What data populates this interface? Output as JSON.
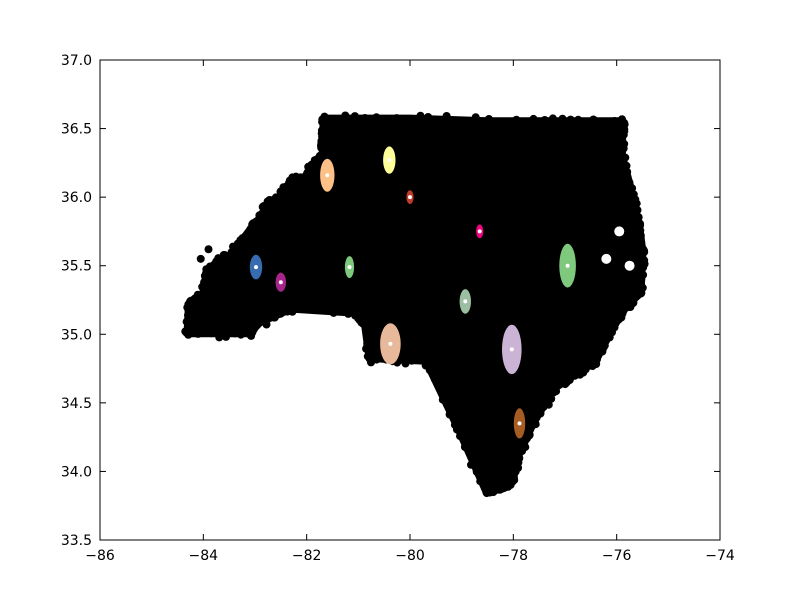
{
  "chart_data": {
    "type": "scatter",
    "title": "",
    "xlabel": "",
    "ylabel": "",
    "xlim": [
      -86,
      -74
    ],
    "ylim": [
      33.5,
      37.0
    ],
    "grid": false,
    "x_ticks": [
      -86,
      -84,
      -82,
      -80,
      -78,
      -76,
      -74
    ],
    "x_tick_labels": [
      "−86",
      "−84",
      "−82",
      "−80",
      "−78",
      "−76",
      "−74"
    ],
    "y_ticks": [
      33.5,
      34.0,
      34.5,
      35.0,
      35.5,
      36.0,
      36.5,
      37.0
    ],
    "y_tick_labels": [
      "33.5",
      "34.0",
      "34.5",
      "35.0",
      "35.5",
      "36.0",
      "36.5",
      "37.0"
    ],
    "background_points": {
      "color": "#000000",
      "region_outline_lonlat": [
        [
          -84.32,
          35.0
        ],
        [
          -84.3,
          35.22
        ],
        [
          -84.02,
          35.3
        ],
        [
          -83.95,
          35.46
        ],
        [
          -83.7,
          35.55
        ],
        [
          -83.5,
          35.57
        ],
        [
          -83.1,
          35.77
        ],
        [
          -82.95,
          35.8
        ],
        [
          -82.78,
          35.95
        ],
        [
          -82.55,
          36.0
        ],
        [
          -82.45,
          36.06
        ],
        [
          -82.25,
          36.13
        ],
        [
          -82.05,
          36.12
        ],
        [
          -81.95,
          36.2
        ],
        [
          -81.7,
          36.33
        ],
        [
          -81.72,
          36.4
        ],
        [
          -81.68,
          36.58
        ],
        [
          -80.0,
          36.58
        ],
        [
          -78.5,
          36.56
        ],
        [
          -77.0,
          36.56
        ],
        [
          -75.87,
          36.56
        ],
        [
          -75.88,
          36.3
        ],
        [
          -75.7,
          36.05
        ],
        [
          -75.55,
          35.8
        ],
        [
          -75.48,
          35.6
        ],
        [
          -75.52,
          35.3
        ],
        [
          -75.8,
          35.2
        ],
        [
          -76.05,
          35.05
        ],
        [
          -76.4,
          34.8
        ],
        [
          -76.8,
          34.7
        ],
        [
          -77.2,
          34.6
        ],
        [
          -77.6,
          34.35
        ],
        [
          -77.9,
          34.1
        ],
        [
          -78.0,
          33.92
        ],
        [
          -78.25,
          33.86
        ],
        [
          -78.55,
          33.86
        ],
        [
          -79.07,
          34.3
        ],
        [
          -79.7,
          34.8
        ],
        [
          -80.8,
          34.82
        ],
        [
          -80.9,
          35.1
        ],
        [
          -81.05,
          35.15
        ],
        [
          -82.3,
          35.18
        ],
        [
          -82.9,
          35.08
        ],
        [
          -83.1,
          35.0
        ],
        [
          -84.32,
          35.0
        ]
      ]
    },
    "clusters": [
      {
        "color": "#386cb0",
        "center": [
          -82.98,
          35.49
        ],
        "spread": [
          0.12,
          0.09
        ]
      },
      {
        "color": "#a6258a",
        "center": [
          -82.5,
          35.38
        ],
        "spread": [
          0.1,
          0.07
        ]
      },
      {
        "color": "#fdc086",
        "center": [
          -81.6,
          36.16
        ],
        "spread": [
          0.14,
          0.12
        ]
      },
      {
        "color": "#7fc97f",
        "center": [
          -81.17,
          35.49
        ],
        "spread": [
          0.09,
          0.08
        ]
      },
      {
        "color": "#ffff99",
        "center": [
          -80.4,
          36.27
        ],
        "spread": [
          0.12,
          0.1
        ]
      },
      {
        "color": "#c0392b",
        "center": [
          -80.0,
          36.0
        ],
        "spread": [
          0.07,
          0.05
        ]
      },
      {
        "color": "#e8b89a",
        "center": [
          -80.38,
          34.93
        ],
        "spread": [
          0.2,
          0.15
        ]
      },
      {
        "color": "#f0027f",
        "center": [
          -78.65,
          35.75
        ],
        "spread": [
          0.07,
          0.05
        ]
      },
      {
        "color": "#9bbfa0",
        "center": [
          -78.93,
          35.24
        ],
        "spread": [
          0.11,
          0.09
        ]
      },
      {
        "color": "#cbb3d6",
        "center": [
          -78.03,
          34.89
        ],
        "spread": [
          0.19,
          0.18
        ]
      },
      {
        "color": "#7fc97f",
        "center": [
          -76.95,
          35.5
        ],
        "spread": [
          0.16,
          0.16
        ]
      },
      {
        "color": "#a65d24",
        "center": [
          -77.88,
          34.35
        ],
        "spread": [
          0.11,
          0.11
        ]
      }
    ],
    "center_marker_color": "#ffffff"
  }
}
